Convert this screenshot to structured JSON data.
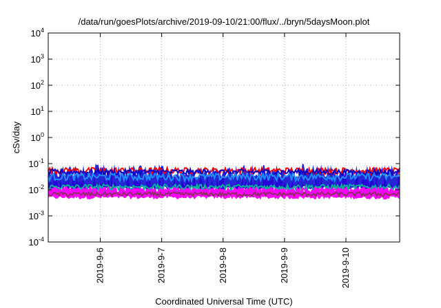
{
  "chart_data": {
    "type": "line",
    "title": "/data/run/goesPlots/archive/2019-09-10/21:00/flux/../bryn/5daysMoon.plot",
    "xlabel": "Coordinated Universal Time (UTC)",
    "ylabel": "cSv/day",
    "yscale": "log",
    "ylim": [
      0.0001,
      10000
    ],
    "xlim": [
      "2019-09-05 03:40",
      "2019-09-10 21:00"
    ],
    "grid": true,
    "x_ticks": [
      {
        "label": "2019-9-6",
        "value": "2019-09-06 00:00"
      },
      {
        "label": "2019-9-7",
        "value": "2019-09-07 00:00"
      },
      {
        "label": "2019-9-8",
        "value": "2019-09-08 00:00"
      },
      {
        "label": "2019-9-9",
        "value": "2019-09-09 00:00"
      },
      {
        "label": "2019-9-10",
        "value": "2019-09-10 00:00"
      }
    ],
    "y_ticks": [
      {
        "base": "10",
        "exp": "-4",
        "value": 0.0001
      },
      {
        "base": "10",
        "exp": "-3",
        "value": 0.001
      },
      {
        "base": "10",
        "exp": "-2",
        "value": 0.01
      },
      {
        "base": "10",
        "exp": "-1",
        "value": 0.1
      },
      {
        "base": "10",
        "exp": "0",
        "value": 1
      },
      {
        "base": "10",
        "exp": "1",
        "value": 10
      },
      {
        "base": "10",
        "exp": "2",
        "value": 100
      },
      {
        "base": "10",
        "exp": "3",
        "value": 1000
      },
      {
        "base": "10",
        "exp": "4",
        "value": 10000
      }
    ],
    "series": [
      {
        "color": "#ff00ff",
        "band": true,
        "band_low": 0.005,
        "band_high_min": 0.008,
        "band_high_max": 0.05
      },
      {
        "color": "#0000cc",
        "band": true,
        "band_low": 0.012,
        "band_high_min": 0.03,
        "band_high_max": 0.1
      },
      {
        "color": "#ff0000",
        "level": 0.055,
        "variation": 0.015
      },
      {
        "color": "#0000cc",
        "level": 0.048,
        "variation": 0.012
      },
      {
        "color": "#1f8fff",
        "level": 0.032,
        "variation": 0.01
      },
      {
        "color": "#00b59a",
        "level": 0.013,
        "variation": 0.003
      },
      {
        "color": "#ff00ff",
        "level": 0.009,
        "variation": 0.002
      },
      {
        "color": "#8a3060",
        "level": 0.0068,
        "variation": 0.0012
      }
    ]
  }
}
